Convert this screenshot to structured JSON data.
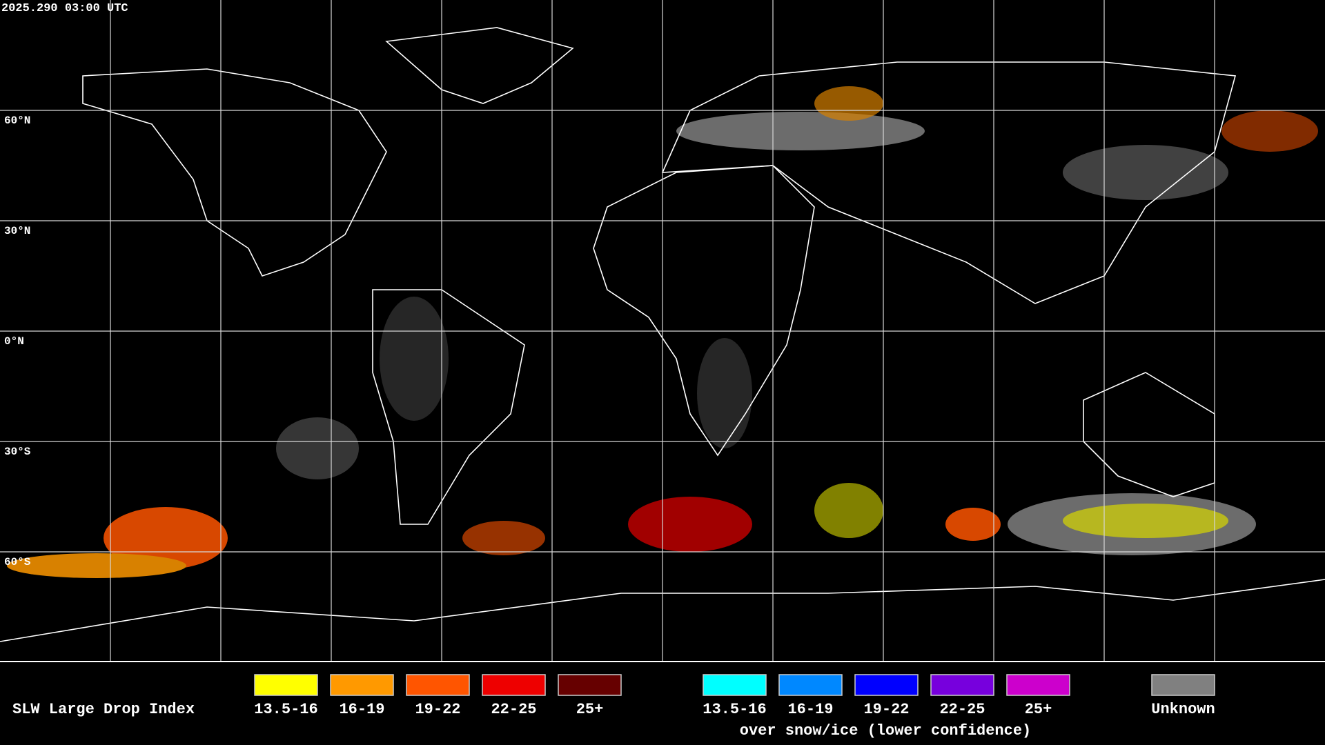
{
  "timestamp": "2025.290 03:00 UTC",
  "latitude_labels": [
    "60°N",
    "30°N",
    "0°N",
    "30°S",
    "60°S"
  ],
  "legend": {
    "title": "SLW Large Drop Index",
    "groups": [
      {
        "items": [
          {
            "label": "13.5-16",
            "color": "#ffff00"
          },
          {
            "label": "16-19",
            "color": "#ff9900"
          },
          {
            "label": "19-22",
            "color": "#ff5500"
          },
          {
            "label": "22-25",
            "color": "#ee0000"
          },
          {
            "label": "25+",
            "color": "#660000"
          }
        ]
      },
      {
        "items": [
          {
            "label": "13.5-16",
            "color": "#00ffff"
          },
          {
            "label": "16-19",
            "color": "#0088ff"
          },
          {
            "label": "19-22",
            "color": "#0000ff"
          },
          {
            "label": "22-25",
            "color": "#7700dd"
          },
          {
            "label": "25+",
            "color": "#cc00cc"
          }
        ],
        "caption": "over snow/ice (lower confidence)"
      },
      {
        "items": [
          {
            "label": "Unknown",
            "color": "#808080"
          }
        ]
      }
    ]
  }
}
